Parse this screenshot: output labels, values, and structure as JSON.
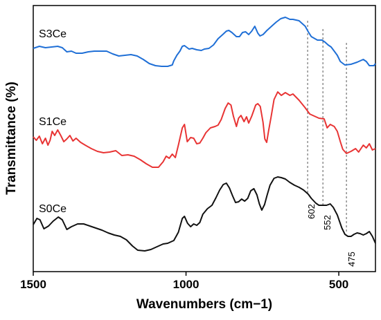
{
  "chart_data": {
    "type": "line",
    "xlabel": "Wavenumbers (cm−1)",
    "ylabel": "Transmittance (%)",
    "xlim": [
      1500,
      380
    ],
    "x_reversed": true,
    "xticks": [
      1500,
      1000,
      500
    ],
    "yticks": [],
    "grid": false,
    "legend": "inline labels at left of each curve",
    "series": [
      {
        "name": "S3Ce",
        "color": "#1f6fd6",
        "points": [
          [
            1500,
            70
          ],
          [
            1480,
            67
          ],
          [
            1460,
            69
          ],
          [
            1440,
            68
          ],
          [
            1420,
            67
          ],
          [
            1405,
            69
          ],
          [
            1390,
            75
          ],
          [
            1375,
            74
          ],
          [
            1360,
            77
          ],
          [
            1340,
            77
          ],
          [
            1320,
            75
          ],
          [
            1300,
            74
          ],
          [
            1280,
            74
          ],
          [
            1260,
            74
          ],
          [
            1240,
            78
          ],
          [
            1220,
            81
          ],
          [
            1200,
            80
          ],
          [
            1180,
            79
          ],
          [
            1160,
            81
          ],
          [
            1140,
            86
          ],
          [
            1120,
            92
          ],
          [
            1100,
            95
          ],
          [
            1080,
            96
          ],
          [
            1060,
            96
          ],
          [
            1045,
            94
          ],
          [
            1040,
            88
          ],
          [
            1030,
            80
          ],
          [
            1020,
            74
          ],
          [
            1012,
            67
          ],
          [
            1005,
            66
          ],
          [
            990,
            71
          ],
          [
            980,
            70
          ],
          [
            965,
            72
          ],
          [
            950,
            73
          ],
          [
            940,
            71
          ],
          [
            925,
            70
          ],
          [
            910,
            65
          ],
          [
            895,
            56
          ],
          [
            880,
            50
          ],
          [
            868,
            45
          ],
          [
            860,
            44
          ],
          [
            850,
            47
          ],
          [
            835,
            53
          ],
          [
            825,
            53
          ],
          [
            815,
            47
          ],
          [
            805,
            46
          ],
          [
            795,
            50
          ],
          [
            785,
            45
          ],
          [
            775,
            38
          ],
          [
            765,
            48
          ],
          [
            758,
            52
          ],
          [
            748,
            50
          ],
          [
            735,
            44
          ],
          [
            720,
            38
          ],
          [
            705,
            32
          ],
          [
            690,
            27
          ],
          [
            675,
            25
          ],
          [
            660,
            28
          ],
          [
            650,
            28
          ],
          [
            630,
            30
          ],
          [
            610,
            38
          ],
          [
            600,
            46
          ],
          [
            590,
            53
          ],
          [
            570,
            58
          ],
          [
            555,
            58
          ],
          [
            545,
            61
          ],
          [
            535,
            65
          ],
          [
            525,
            68
          ],
          [
            515,
            74
          ],
          [
            505,
            80
          ],
          [
            495,
            89
          ],
          [
            480,
            94
          ],
          [
            460,
            93
          ],
          [
            440,
            90
          ],
          [
            420,
            86
          ],
          [
            410,
            89
          ],
          [
            400,
            95
          ],
          [
            385,
            95
          ],
          [
            380,
            92
          ]
        ]
      },
      {
        "name": "S1Ce",
        "color": "#e83434",
        "points": [
          [
            1500,
            198
          ],
          [
            1490,
            203
          ],
          [
            1480,
            197
          ],
          [
            1470,
            208
          ],
          [
            1460,
            200
          ],
          [
            1452,
            210
          ],
          [
            1445,
            203
          ],
          [
            1438,
            190
          ],
          [
            1430,
            196
          ],
          [
            1420,
            188
          ],
          [
            1410,
            196
          ],
          [
            1400,
            205
          ],
          [
            1390,
            201
          ],
          [
            1380,
            196
          ],
          [
            1370,
            204
          ],
          [
            1360,
            200
          ],
          [
            1345,
            206
          ],
          [
            1330,
            210
          ],
          [
            1310,
            215
          ],
          [
            1290,
            219
          ],
          [
            1270,
            221
          ],
          [
            1250,
            220
          ],
          [
            1230,
            218
          ],
          [
            1210,
            225
          ],
          [
            1190,
            224
          ],
          [
            1170,
            226
          ],
          [
            1150,
            231
          ],
          [
            1130,
            237
          ],
          [
            1110,
            242
          ],
          [
            1090,
            242
          ],
          [
            1075,
            234
          ],
          [
            1065,
            226
          ],
          [
            1055,
            229
          ],
          [
            1045,
            223
          ],
          [
            1035,
            228
          ],
          [
            1025,
            210
          ],
          [
            1012,
            185
          ],
          [
            1005,
            180
          ],
          [
            996,
            205
          ],
          [
            985,
            199
          ],
          [
            975,
            200
          ],
          [
            965,
            208
          ],
          [
            955,
            207
          ],
          [
            945,
            200
          ],
          [
            935,
            192
          ],
          [
            920,
            185
          ],
          [
            905,
            183
          ],
          [
            895,
            181
          ],
          [
            885,
            173
          ],
          [
            872,
            157
          ],
          [
            862,
            149
          ],
          [
            853,
            152
          ],
          [
            845,
            168
          ],
          [
            835,
            183
          ],
          [
            828,
            171
          ],
          [
            820,
            167
          ],
          [
            810,
            176
          ],
          [
            802,
            169
          ],
          [
            795,
            178
          ],
          [
            785,
            168
          ],
          [
            772,
            152
          ],
          [
            765,
            150
          ],
          [
            757,
            154
          ],
          [
            748,
            177
          ],
          [
            742,
            201
          ],
          [
            736,
            206
          ],
          [
            730,
            190
          ],
          [
            722,
            170
          ],
          [
            712,
            144
          ],
          [
            700,
            133
          ],
          [
            688,
            138
          ],
          [
            675,
            134
          ],
          [
            660,
            138
          ],
          [
            650,
            136
          ],
          [
            630,
            145
          ],
          [
            610,
            156
          ],
          [
            595,
            165
          ],
          [
            580,
            168
          ],
          [
            565,
            171
          ],
          [
            548,
            172
          ],
          [
            538,
            185
          ],
          [
            528,
            180
          ],
          [
            515,
            183
          ],
          [
            505,
            190
          ],
          [
            495,
            205
          ],
          [
            487,
            216
          ],
          [
            475,
            222
          ],
          [
            460,
            219
          ],
          [
            445,
            215
          ],
          [
            435,
            220
          ],
          [
            420,
            210
          ],
          [
            410,
            214
          ],
          [
            400,
            208
          ],
          [
            390,
            217
          ],
          [
            380,
            215
          ]
        ]
      },
      {
        "name": "S0Ce",
        "color": "#111111",
        "points": [
          [
            1500,
            325
          ],
          [
            1488,
            316
          ],
          [
            1478,
            318
          ],
          [
            1465,
            331
          ],
          [
            1450,
            327
          ],
          [
            1435,
            320
          ],
          [
            1418,
            314
          ],
          [
            1405,
            318
          ],
          [
            1390,
            332
          ],
          [
            1375,
            328
          ],
          [
            1355,
            324
          ],
          [
            1335,
            324
          ],
          [
            1315,
            327
          ],
          [
            1295,
            330
          ],
          [
            1275,
            333
          ],
          [
            1255,
            337
          ],
          [
            1235,
            340
          ],
          [
            1215,
            342
          ],
          [
            1195,
            347
          ],
          [
            1175,
            356
          ],
          [
            1158,
            362
          ],
          [
            1135,
            363
          ],
          [
            1115,
            361
          ],
          [
            1095,
            357
          ],
          [
            1075,
            353
          ],
          [
            1060,
            352
          ],
          [
            1040,
            348
          ],
          [
            1025,
            336
          ],
          [
            1012,
            316
          ],
          [
            1005,
            313
          ],
          [
            995,
            323
          ],
          [
            985,
            328
          ],
          [
            975,
            324
          ],
          [
            965,
            326
          ],
          [
            955,
            322
          ],
          [
            945,
            310
          ],
          [
            930,
            302
          ],
          [
            915,
            297
          ],
          [
            902,
            286
          ],
          [
            890,
            275
          ],
          [
            878,
            267
          ],
          [
            868,
            265
          ],
          [
            858,
            272
          ],
          [
            848,
            283
          ],
          [
            838,
            293
          ],
          [
            828,
            292
          ],
          [
            818,
            288
          ],
          [
            808,
            291
          ],
          [
            798,
            287
          ],
          [
            788,
            276
          ],
          [
            778,
            273
          ],
          [
            768,
            282
          ],
          [
            760,
            295
          ],
          [
            752,
            304
          ],
          [
            743,
            296
          ],
          [
            735,
            283
          ],
          [
            725,
            268
          ],
          [
            712,
            258
          ],
          [
            700,
            256
          ],
          [
            688,
            257
          ],
          [
            675,
            259
          ],
          [
            660,
            264
          ],
          [
            645,
            268
          ],
          [
            630,
            271
          ],
          [
            615,
            275
          ],
          [
            600,
            281
          ],
          [
            590,
            287
          ],
          [
            575,
            294
          ],
          [
            565,
            297
          ],
          [
            552,
            297
          ],
          [
            540,
            297
          ],
          [
            528,
            295
          ],
          [
            518,
            300
          ],
          [
            505,
            311
          ],
          [
            490,
            330
          ],
          [
            480,
            339
          ],
          [
            470,
            342
          ],
          [
            460,
            342
          ],
          [
            450,
            339
          ],
          [
            440,
            337
          ],
          [
            430,
            338
          ],
          [
            420,
            340
          ],
          [
            410,
            338
          ],
          [
            400,
            335
          ],
          [
            390,
            342
          ],
          [
            380,
            352
          ]
        ]
      }
    ],
    "annotations": [
      {
        "label": "602",
        "x": 602
      },
      {
        "label": "552",
        "x": 552
      },
      {
        "label": "475",
        "x": 475
      }
    ]
  }
}
